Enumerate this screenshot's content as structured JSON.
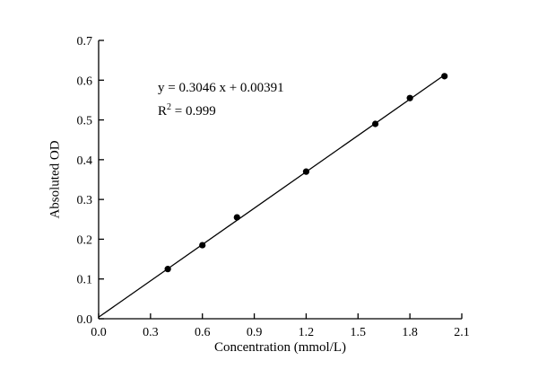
{
  "figure": {
    "background": "#ffffff"
  },
  "chart_data": {
    "type": "scatter",
    "title": "",
    "xlabel": "Concentration (mmol/L)",
    "ylabel": "Absoluted OD",
    "x": [
      0.4,
      0.6,
      0.8,
      1.2,
      1.6,
      1.8,
      2.0
    ],
    "y": [
      0.125,
      0.185,
      0.255,
      0.37,
      0.49,
      0.555,
      0.61
    ],
    "fit": {
      "slope": 0.3046,
      "intercept": 0.00391,
      "x_range": [
        0.0,
        2.0
      ]
    },
    "annotation": {
      "equation": "y = 0.3046 x + 0.00391",
      "r2_base": "R",
      "r2_exp": "2",
      "r2_rest": " = 0.999"
    },
    "xlim": [
      0.0,
      2.1
    ],
    "ylim": [
      0.0,
      0.7
    ],
    "xticks": [
      0.0,
      0.3,
      0.6,
      0.9,
      1.2,
      1.5,
      1.8,
      2.1
    ],
    "xtick_labels": [
      "0.0",
      "0.3",
      "0.6",
      "0.9",
      "1.2",
      "1.5",
      "1.8",
      "2.1"
    ],
    "yticks": [
      0.0,
      0.1,
      0.2,
      0.3,
      0.4,
      0.5,
      0.6,
      0.7
    ],
    "ytick_labels": [
      "0.0",
      "0.1",
      "0.2",
      "0.3",
      "0.4",
      "0.5",
      "0.6",
      "0.7"
    ],
    "grid": false,
    "legend": false,
    "marker": {
      "shape": "circle",
      "color": "#000000",
      "radius": 3.6
    },
    "line_color": "#000000",
    "axis_color": "#000000"
  }
}
